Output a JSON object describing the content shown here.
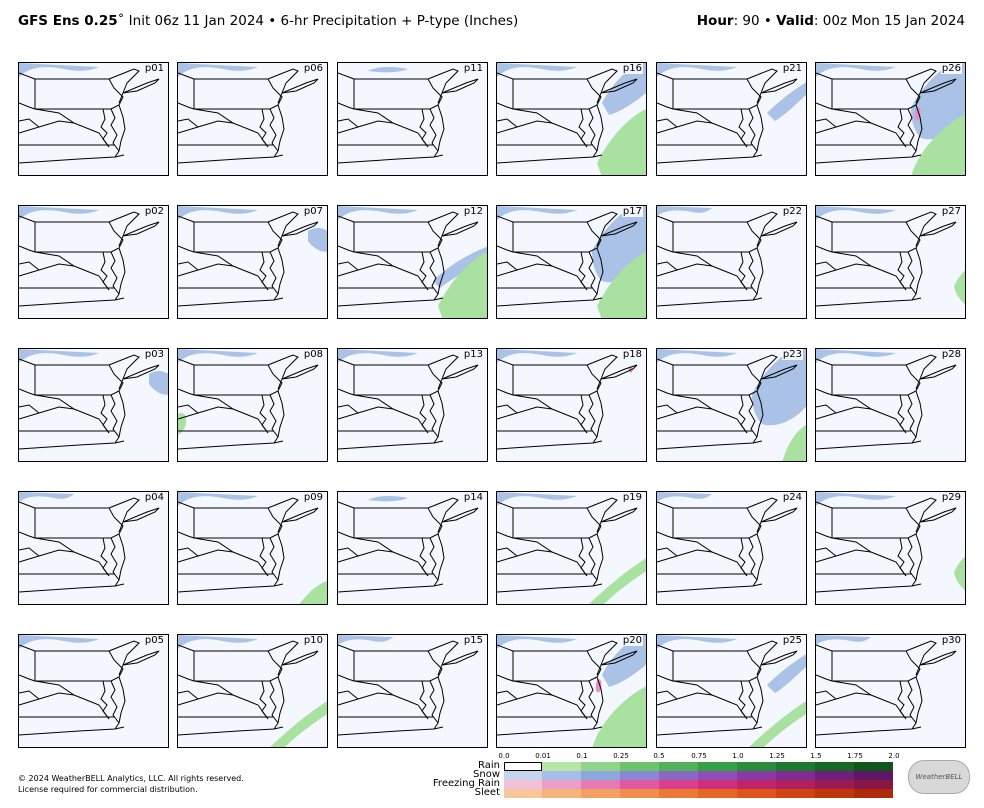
{
  "header": {
    "model": "GFS Ens 0.25",
    "degree": "˚",
    "subtitle": "Init 06z 11 Jan 2024 • 6-hr Precipitation + P-type (Inches)",
    "hour_label": "Hour",
    "hour_value": ": 90 •",
    "valid_label": "Valid",
    "valid_value": ": 00z Mon 15 Jan 2024"
  },
  "panels": [
    {
      "label": "p01",
      "precip": [
        "snow-nw"
      ]
    },
    {
      "label": "p06",
      "precip": [
        "snow-nw"
      ]
    },
    {
      "label": "p11",
      "precip": [
        "snow-n-light"
      ]
    },
    {
      "label": "p16",
      "precip": [
        "snow-nw",
        "snow-ne",
        "rain-se"
      ]
    },
    {
      "label": "p21",
      "precip": [
        "snow-nw",
        "snow-ne-band"
      ]
    },
    {
      "label": "p26",
      "precip": [
        "snow-nw",
        "snow-ne-big",
        "rain-se-big",
        "fzrain-small"
      ]
    },
    {
      "label": "p02",
      "precip": [
        "snow-nw"
      ]
    },
    {
      "label": "p07",
      "precip": [
        "snow-nw",
        "snow-e-small"
      ]
    },
    {
      "label": "p12",
      "precip": [
        "snow-nw",
        "snow-se-band",
        "rain-se"
      ]
    },
    {
      "label": "p17",
      "precip": [
        "snow-nw",
        "snow-ne-big",
        "rain-se"
      ]
    },
    {
      "label": "p22",
      "precip": [
        "snow-nw-light"
      ]
    },
    {
      "label": "p27",
      "precip": [
        "snow-nw",
        "rain-e-small"
      ]
    },
    {
      "label": "p03",
      "precip": [
        "snow-nw",
        "snow-e-small"
      ]
    },
    {
      "label": "p08",
      "precip": [
        "snow-nw",
        "rain-w-small"
      ]
    },
    {
      "label": "p13",
      "precip": [
        "snow-nw"
      ]
    },
    {
      "label": "p18",
      "precip": [
        "snow-nw",
        "fzrain-tiny"
      ]
    },
    {
      "label": "p23",
      "precip": [
        "snow-nw",
        "snow-ne-big",
        "rain-se-small"
      ]
    },
    {
      "label": "p28",
      "precip": [
        "snow-nw"
      ]
    },
    {
      "label": "p04",
      "precip": [
        "snow-nw-light"
      ]
    },
    {
      "label": "p09",
      "precip": [
        "snow-nw",
        "rain-sw-small"
      ]
    },
    {
      "label": "p14",
      "precip": [
        "snow-n-light"
      ]
    },
    {
      "label": "p19",
      "precip": [
        "snow-nw",
        "rain-se-band"
      ]
    },
    {
      "label": "p24",
      "precip": [
        "snow-nw-light"
      ]
    },
    {
      "label": "p29",
      "precip": [
        "snow-nw",
        "rain-e-small"
      ]
    },
    {
      "label": "p05",
      "precip": [
        "snow-nw"
      ]
    },
    {
      "label": "p10",
      "precip": [
        "snow-nw",
        "rain-se-band"
      ]
    },
    {
      "label": "p15",
      "precip": [
        "snow-nw-light"
      ]
    },
    {
      "label": "p20",
      "precip": [
        "snow-nw",
        "snow-ne",
        "rain-se-big",
        "fzrain-small"
      ]
    },
    {
      "label": "p25",
      "precip": [
        "snow-nw",
        "snow-ne-band",
        "rain-se-band"
      ]
    },
    {
      "label": "p30",
      "precip": [
        "snow-nw-light"
      ]
    }
  ],
  "legend": {
    "ticks": [
      "0.0",
      "0.01",
      "0.1",
      "0.25",
      "0.5",
      "0.75",
      "1.0",
      "1.25",
      "1.5",
      "1.75",
      "2.0"
    ],
    "rows": [
      {
        "label": "Rain",
        "colors": [
          "#ffffff",
          "#b6e5a8",
          "#8fd48a",
          "#6cc46a",
          "#4fb25a",
          "#36a049",
          "#2a8d3d",
          "#1f7a31",
          "#166826",
          "#0f551c",
          "#0a4313"
        ]
      },
      {
        "label": "Snow",
        "colors": [
          "#c6d4ee",
          "#a6bde6",
          "#8ca6de",
          "#8b86d2",
          "#8b68c4",
          "#8c4fb5",
          "#8a3aa3",
          "#7f2b90",
          "#70207b",
          "#5e1766",
          "#4c1052"
        ]
      },
      {
        "label": "Freezing Rain",
        "colors": [
          "#f2c1d9",
          "#eb9ec8",
          "#e57ab5",
          "#e05aa1",
          "#d9408e",
          "#cf2f7c",
          "#c0246c",
          "#b0205f",
          "#9c1b52",
          "#8a1645",
          "#771238"
        ]
      },
      {
        "label": "Sleet",
        "colors": [
          "#f8c799",
          "#f6b47c",
          "#f4a062",
          "#f08e4a",
          "#ec7a35",
          "#e66624",
          "#dd5418",
          "#cf4410",
          "#c0360b",
          "#af2a08",
          "#9d2006"
        ]
      }
    ]
  },
  "footer": {
    "copyright": "© 2024 WeatherBELL Analytics, LLC. All rights reserved.",
    "license": "License required for commercial distribution.",
    "logo_text": "WeatherBELL"
  },
  "colors": {
    "snow": "#a9c2e6",
    "snow_dark": "#8b96d6",
    "rain": "#a9e2a0",
    "rain_dark": "#6cc46a",
    "fzrain": "#e58fc3",
    "map_bg": "#f4f7fd"
  }
}
